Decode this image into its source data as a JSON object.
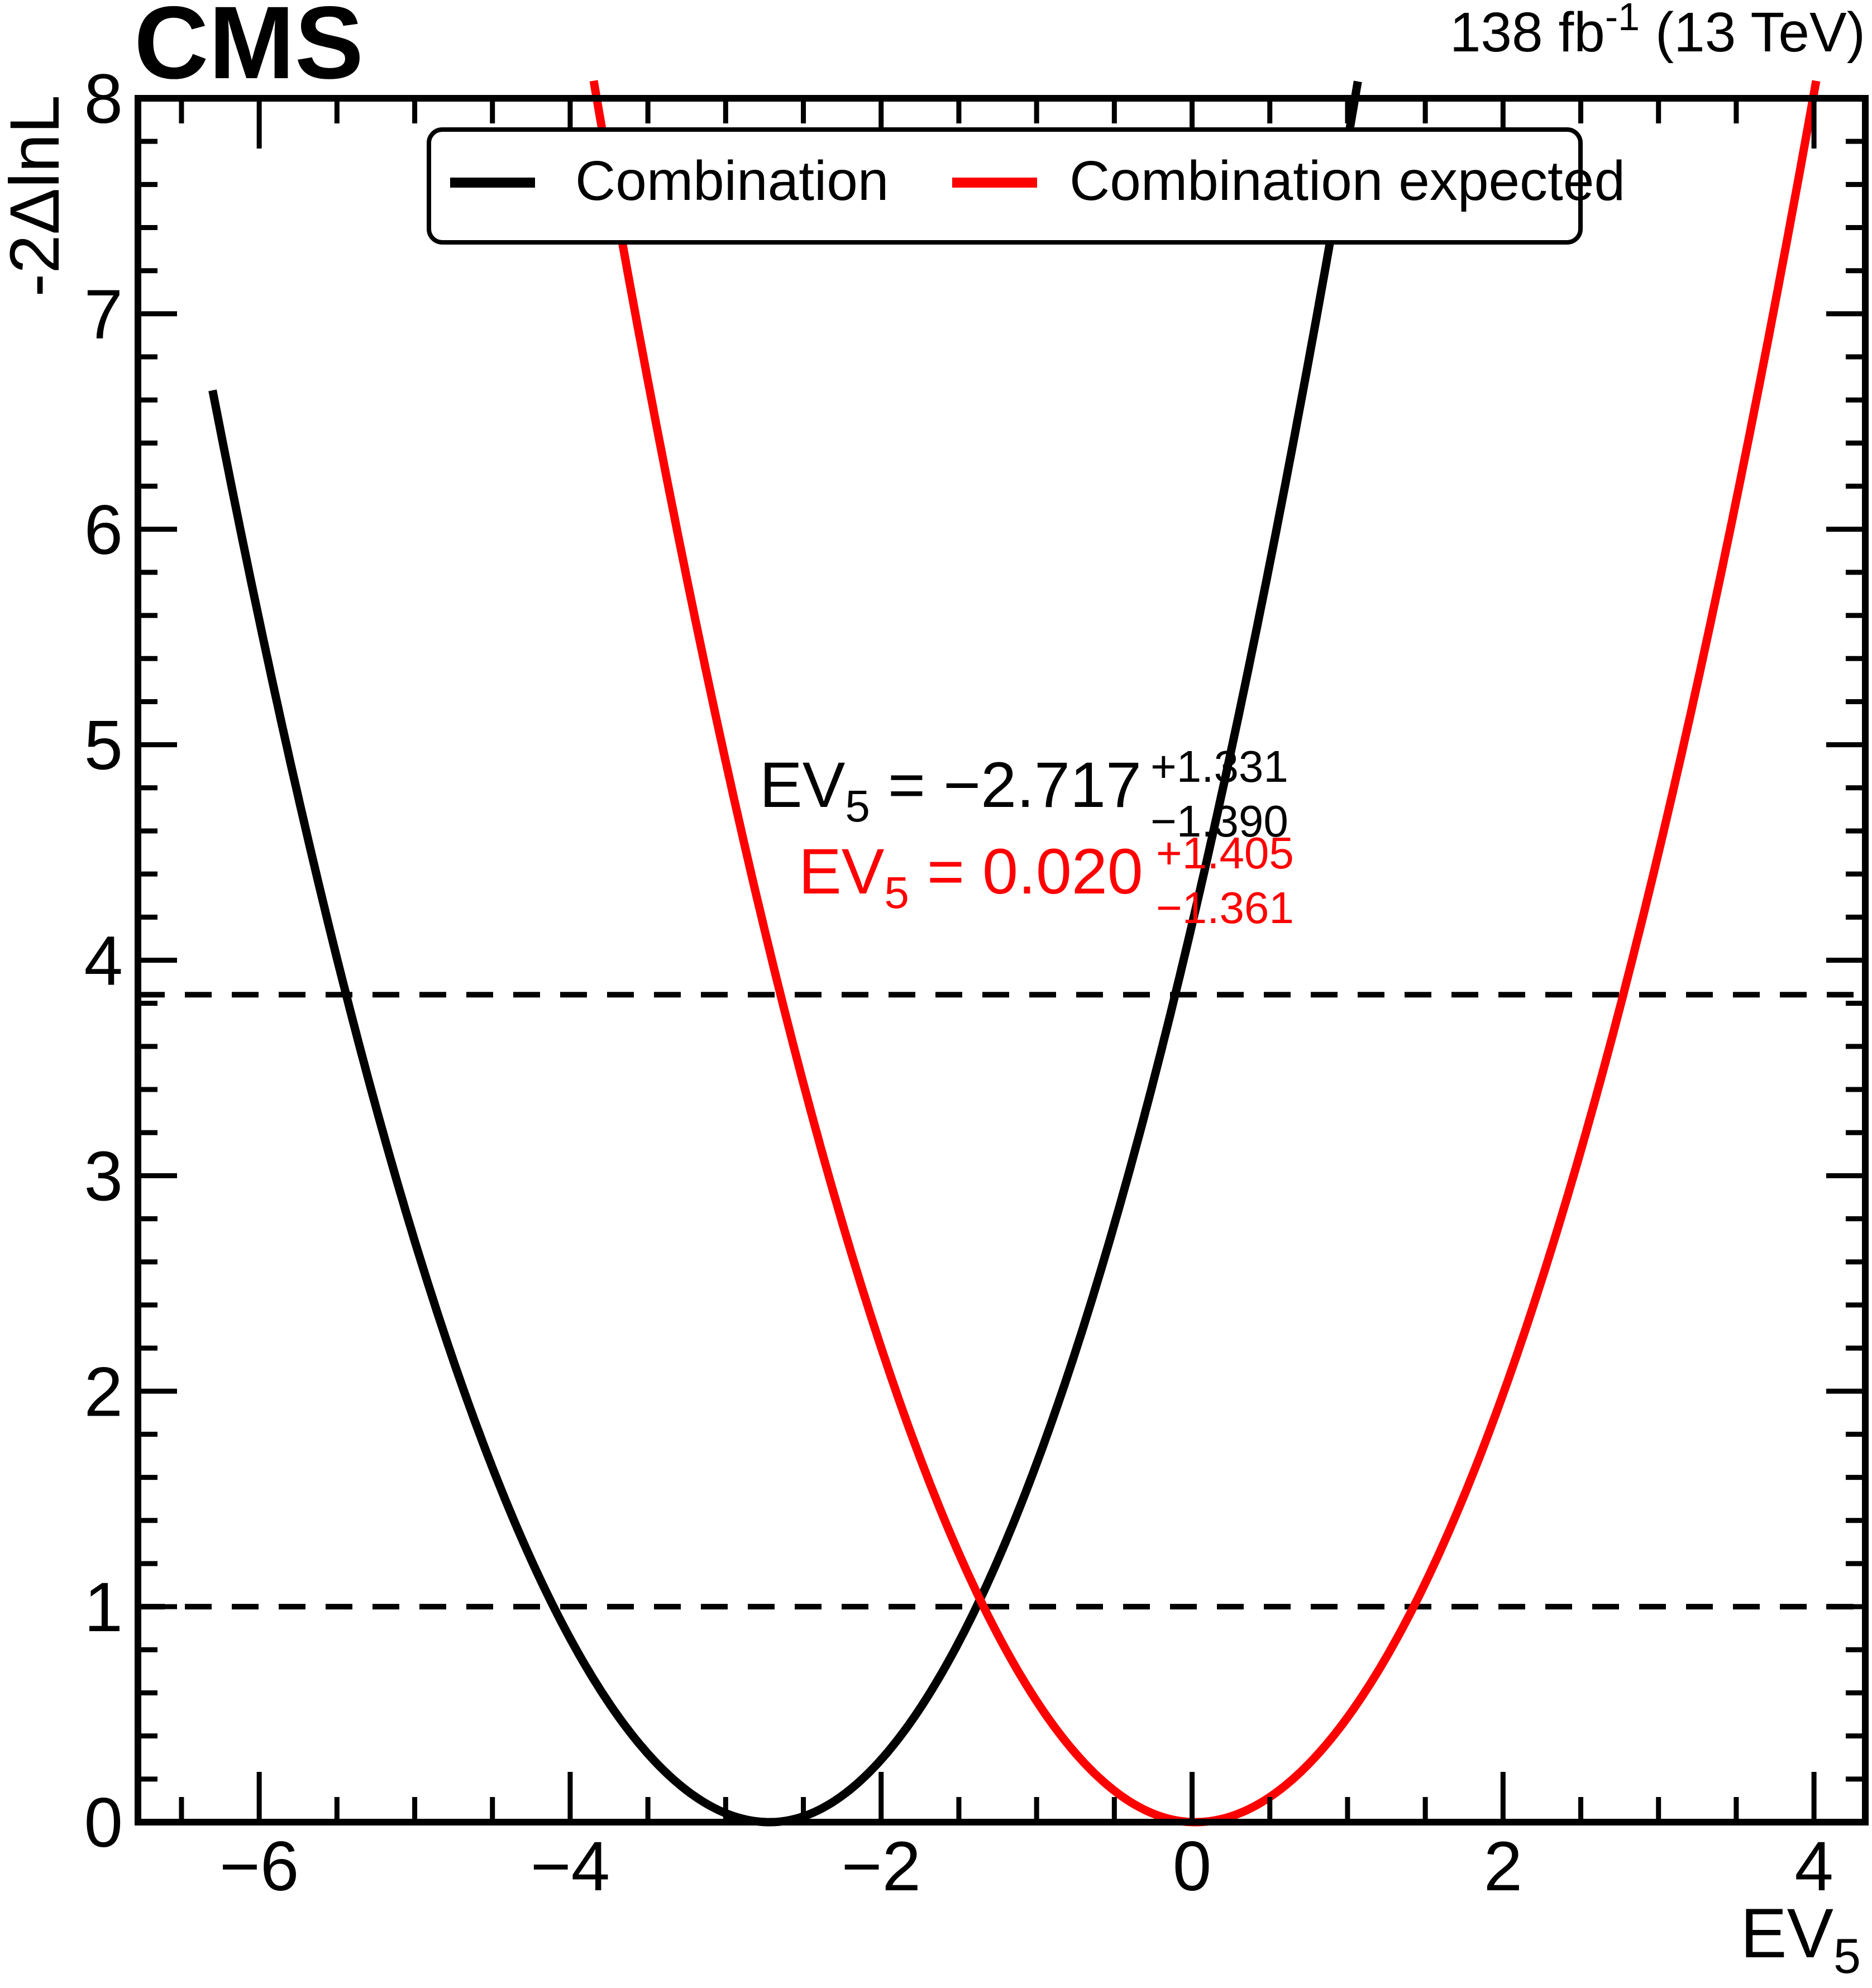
{
  "header": {
    "cms_logo": "CMS",
    "lumi_prefix": "138 fb",
    "lumi_sup": "-1",
    "lumi_suffix": " (13 TeV)"
  },
  "legend": {
    "entries": [
      {
        "label": "Combination",
        "color": "#000000"
      },
      {
        "label": "Combination expected",
        "color": "#ff0000"
      }
    ]
  },
  "chart_data": {
    "type": "line",
    "title": "",
    "xlabel_main": "EV",
    "xlabel_sub": "5",
    "ylabel": "-2ΔlnL",
    "xlim": [
      -6.78,
      4.33
    ],
    "ylim": [
      0,
      8
    ],
    "grid": false,
    "legend_position": "top-center-inside",
    "x_major_ticks": [
      -6,
      -4,
      -2,
      0,
      2,
      4
    ],
    "x_tick_labels": [
      "−6",
      "−4",
      "−2",
      "0",
      "2",
      "4"
    ],
    "x_minor_step": 0.5,
    "y_major_ticks": [
      0,
      1,
      2,
      3,
      4,
      5,
      6,
      7,
      8
    ],
    "y_tick_labels": [
      "0",
      "1",
      "2",
      "3",
      "4",
      "5",
      "6",
      "7",
      "8"
    ],
    "y_minor_step": 0.2,
    "reference_lines": [
      {
        "y": 1.0,
        "style": "dashed",
        "color": "#000000"
      },
      {
        "y": 3.84,
        "style": "dashed",
        "color": "#000000"
      }
    ],
    "series": [
      {
        "name": "Combination",
        "color": "#000000",
        "shape": "likelihood-parabola",
        "best_fit": -2.717,
        "err_up": 1.331,
        "err_down": 1.39,
        "x_start": -6.3,
        "x_end": 1.066,
        "anchor_points": {
          "x": [
            -6.3,
            -6.0,
            -5.0,
            -4.0,
            -3.0,
            -2.717,
            -2.0,
            -1.0,
            0.0,
            1.0,
            1.047
          ],
          "y": [
            6.64,
            5.58,
            2.7,
            0.85,
            0.04,
            0.0,
            0.29,
            1.66,
            4.17,
            7.8,
            8.0
          ]
        }
      },
      {
        "name": "Combination expected",
        "color": "#ff0000",
        "shape": "likelihood-parabola",
        "best_fit": 0.02,
        "err_up": 1.405,
        "err_down": 1.361,
        "x_start": -3.849,
        "x_end": 4.014,
        "anchor_points": {
          "x": [
            -3.83,
            -3.0,
            -2.0,
            -1.0,
            0.02,
            1.0,
            2.0,
            3.0,
            3.99
          ],
          "y": [
            8.0,
            4.92,
            2.2,
            0.56,
            0.0,
            0.49,
            1.99,
            4.5,
            8.0
          ]
        }
      }
    ],
    "annotations": [
      {
        "color": "#000000",
        "main": "EV",
        "param_sub": "5",
        "value_text": " = −2.717",
        "err_up": "+1.331",
        "err_down": "−1.390"
      },
      {
        "color": "#ff0000",
        "main": "EV",
        "param_sub": "5",
        "value_text": " = 0.020",
        "err_up": "+1.405",
        "err_down": "−1.361"
      }
    ]
  }
}
